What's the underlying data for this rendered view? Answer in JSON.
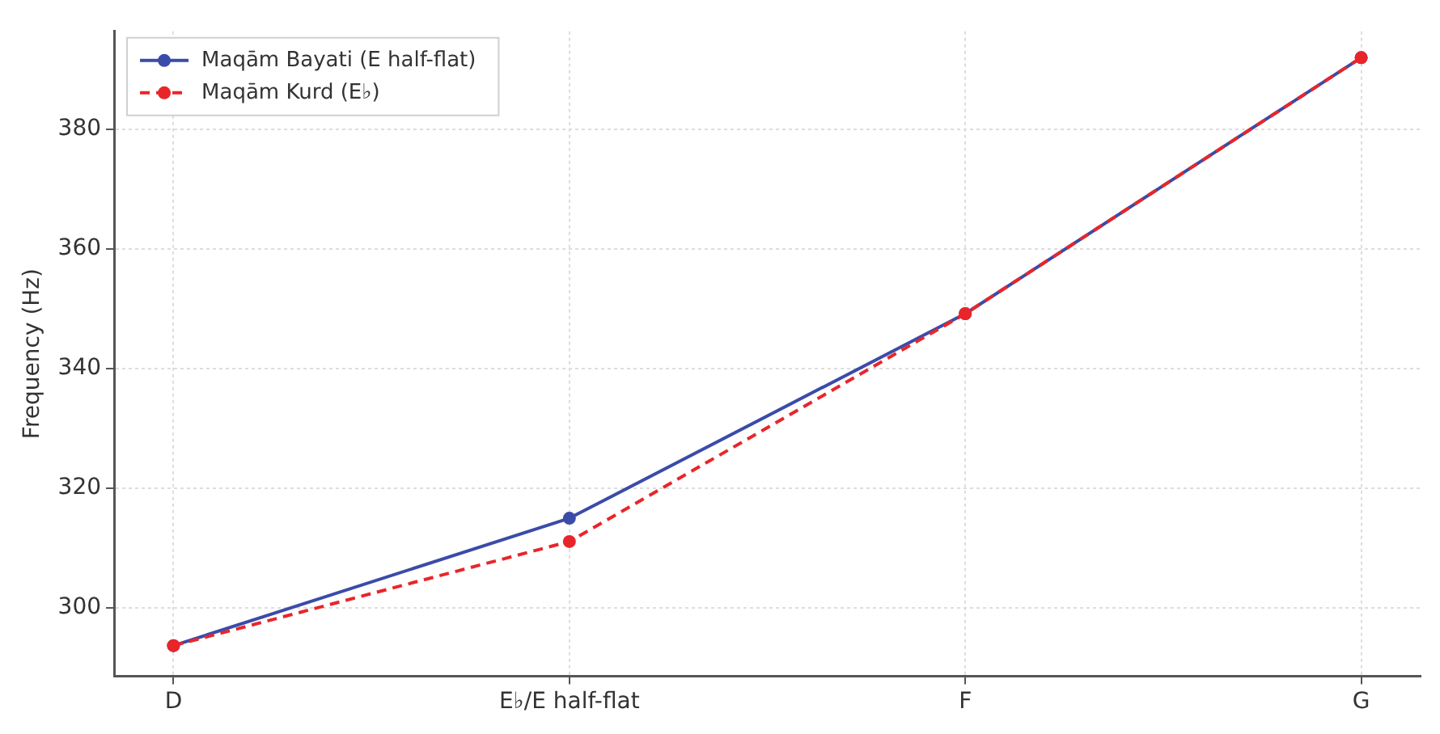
{
  "chart_data": {
    "type": "line",
    "ylabel": "Frequency (Hz)",
    "categories": [
      "D",
      "E♭/E half-flat",
      "F",
      "G"
    ],
    "series": [
      {
        "name": "Maqām Bayati (E half-flat)",
        "color": "#3b4ba8",
        "values": [
          293.7,
          315,
          349.2,
          392
        ],
        "line_style": "solid"
      },
      {
        "name": "Maqām Kurd (E♭)",
        "color": "#e8262a",
        "values": [
          293.7,
          311.1,
          349.2,
          392
        ],
        "line_style": "dashed"
      }
    ],
    "ylim": [
      288.6,
      396.4
    ],
    "yticks": [
      300,
      320,
      340,
      360,
      380
    ],
    "grid": true,
    "legend": "top left",
    "marker": "circle"
  }
}
